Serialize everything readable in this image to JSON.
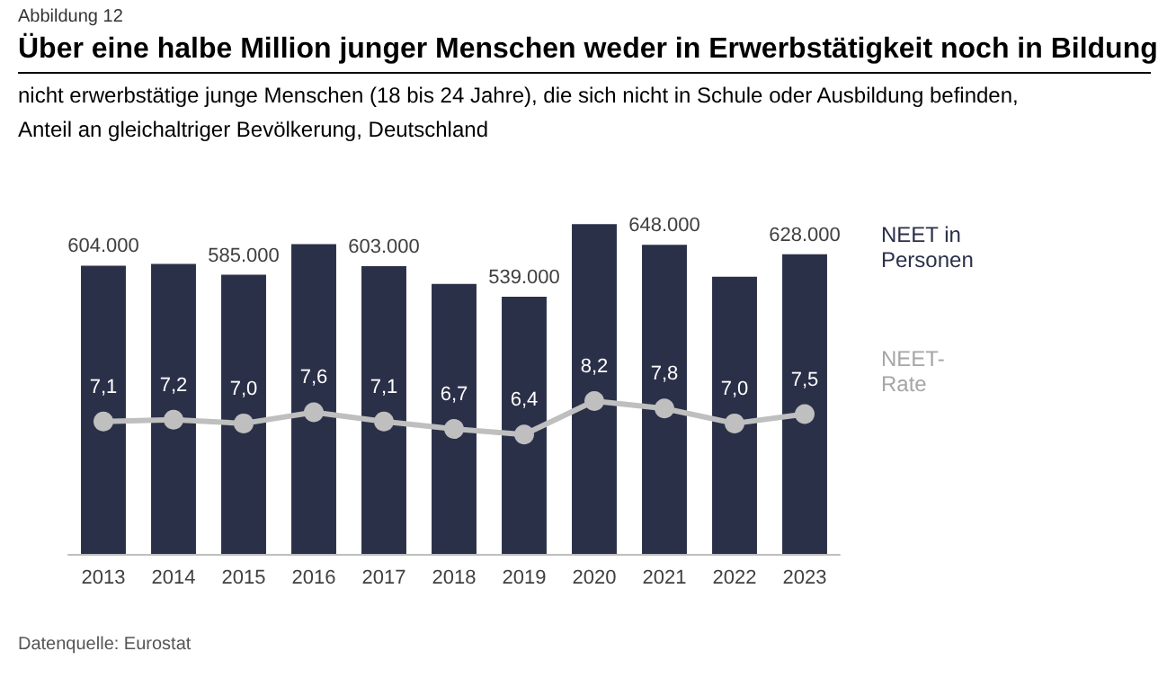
{
  "chart_data": {
    "type": "bar",
    "title": "Über eine halbe Million junger Menschen weder in Erwerbstätigkeit noch in Bildung",
    "subtitle": "nicht erwerbstätige junge Menschen (18 bis 24 Jahre), die sich nicht in Schule oder Ausbildung befinden, Anteil an gleichaltriger Bevölkerung, Deutschland",
    "annotations": [
      "Abbildung 12",
      "Datenquelle: Eurostat"
    ],
    "categories": [
      "2013",
      "2014",
      "2015",
      "2016",
      "2017",
      "2018",
      "2019",
      "2020",
      "2021",
      "2022",
      "2023"
    ],
    "series": [
      {
        "name": "NEET in Personen",
        "color": "#2b3049",
        "values": [
          604000,
          608000,
          585000,
          649000,
          603000,
          566000,
          539000,
          691000,
          648000,
          581000,
          628000
        ],
        "value_labels": [
          "604.000",
          null,
          "585.000",
          null,
          "603.000",
          null,
          "539.000",
          null,
          "648.000",
          null,
          "628.000"
        ]
      },
      {
        "name": "NEET-Rate",
        "type": "line",
        "axis": "y2",
        "color": "#bfbfbf",
        "values": [
          7.1,
          7.2,
          7.0,
          7.6,
          7.1,
          6.7,
          6.4,
          8.2,
          7.8,
          7.0,
          7.5
        ],
        "value_labels": [
          "7,1",
          "7,2",
          "7,0",
          "7,6",
          "7,1",
          "6,7",
          "6,4",
          "8,2",
          "7,8",
          "7,0",
          "7,5"
        ]
      }
    ],
    "legend": false,
    "grid": false,
    "marker": "circle",
    "line_style": "solid"
  }
}
